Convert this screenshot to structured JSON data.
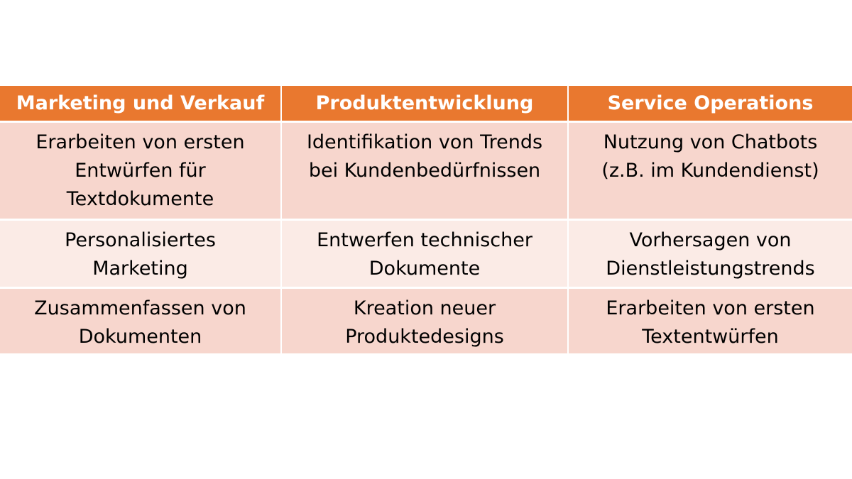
{
  "table": {
    "headers": [
      "Marketing und Verkauf",
      "Produktentwicklung",
      "Service Operations"
    ],
    "rows": [
      [
        "Erarbeiten von ersten\nEntwürfen für\nTextdokumente",
        "Identifikation von Trends\nbei Kundenbedürfnissen",
        "Nutzung von Chatbots\n(z.B. im Kundendienst)"
      ],
      [
        "Personalisiertes\nMarketing",
        "Entwerfen technischer\nDokumente",
        "Vorhersagen von\nDienstleistungstrends"
      ],
      [
        "Zusammenfassen von\nDokumenten",
        "Kreation neuer\nProduktedesigns",
        "Erarbeiten von ersten\nTextentwürfen"
      ]
    ]
  },
  "colors": {
    "header_bg": "#e9782f",
    "row_dark": "#f7d6cd",
    "row_light": "#fbebe6"
  }
}
